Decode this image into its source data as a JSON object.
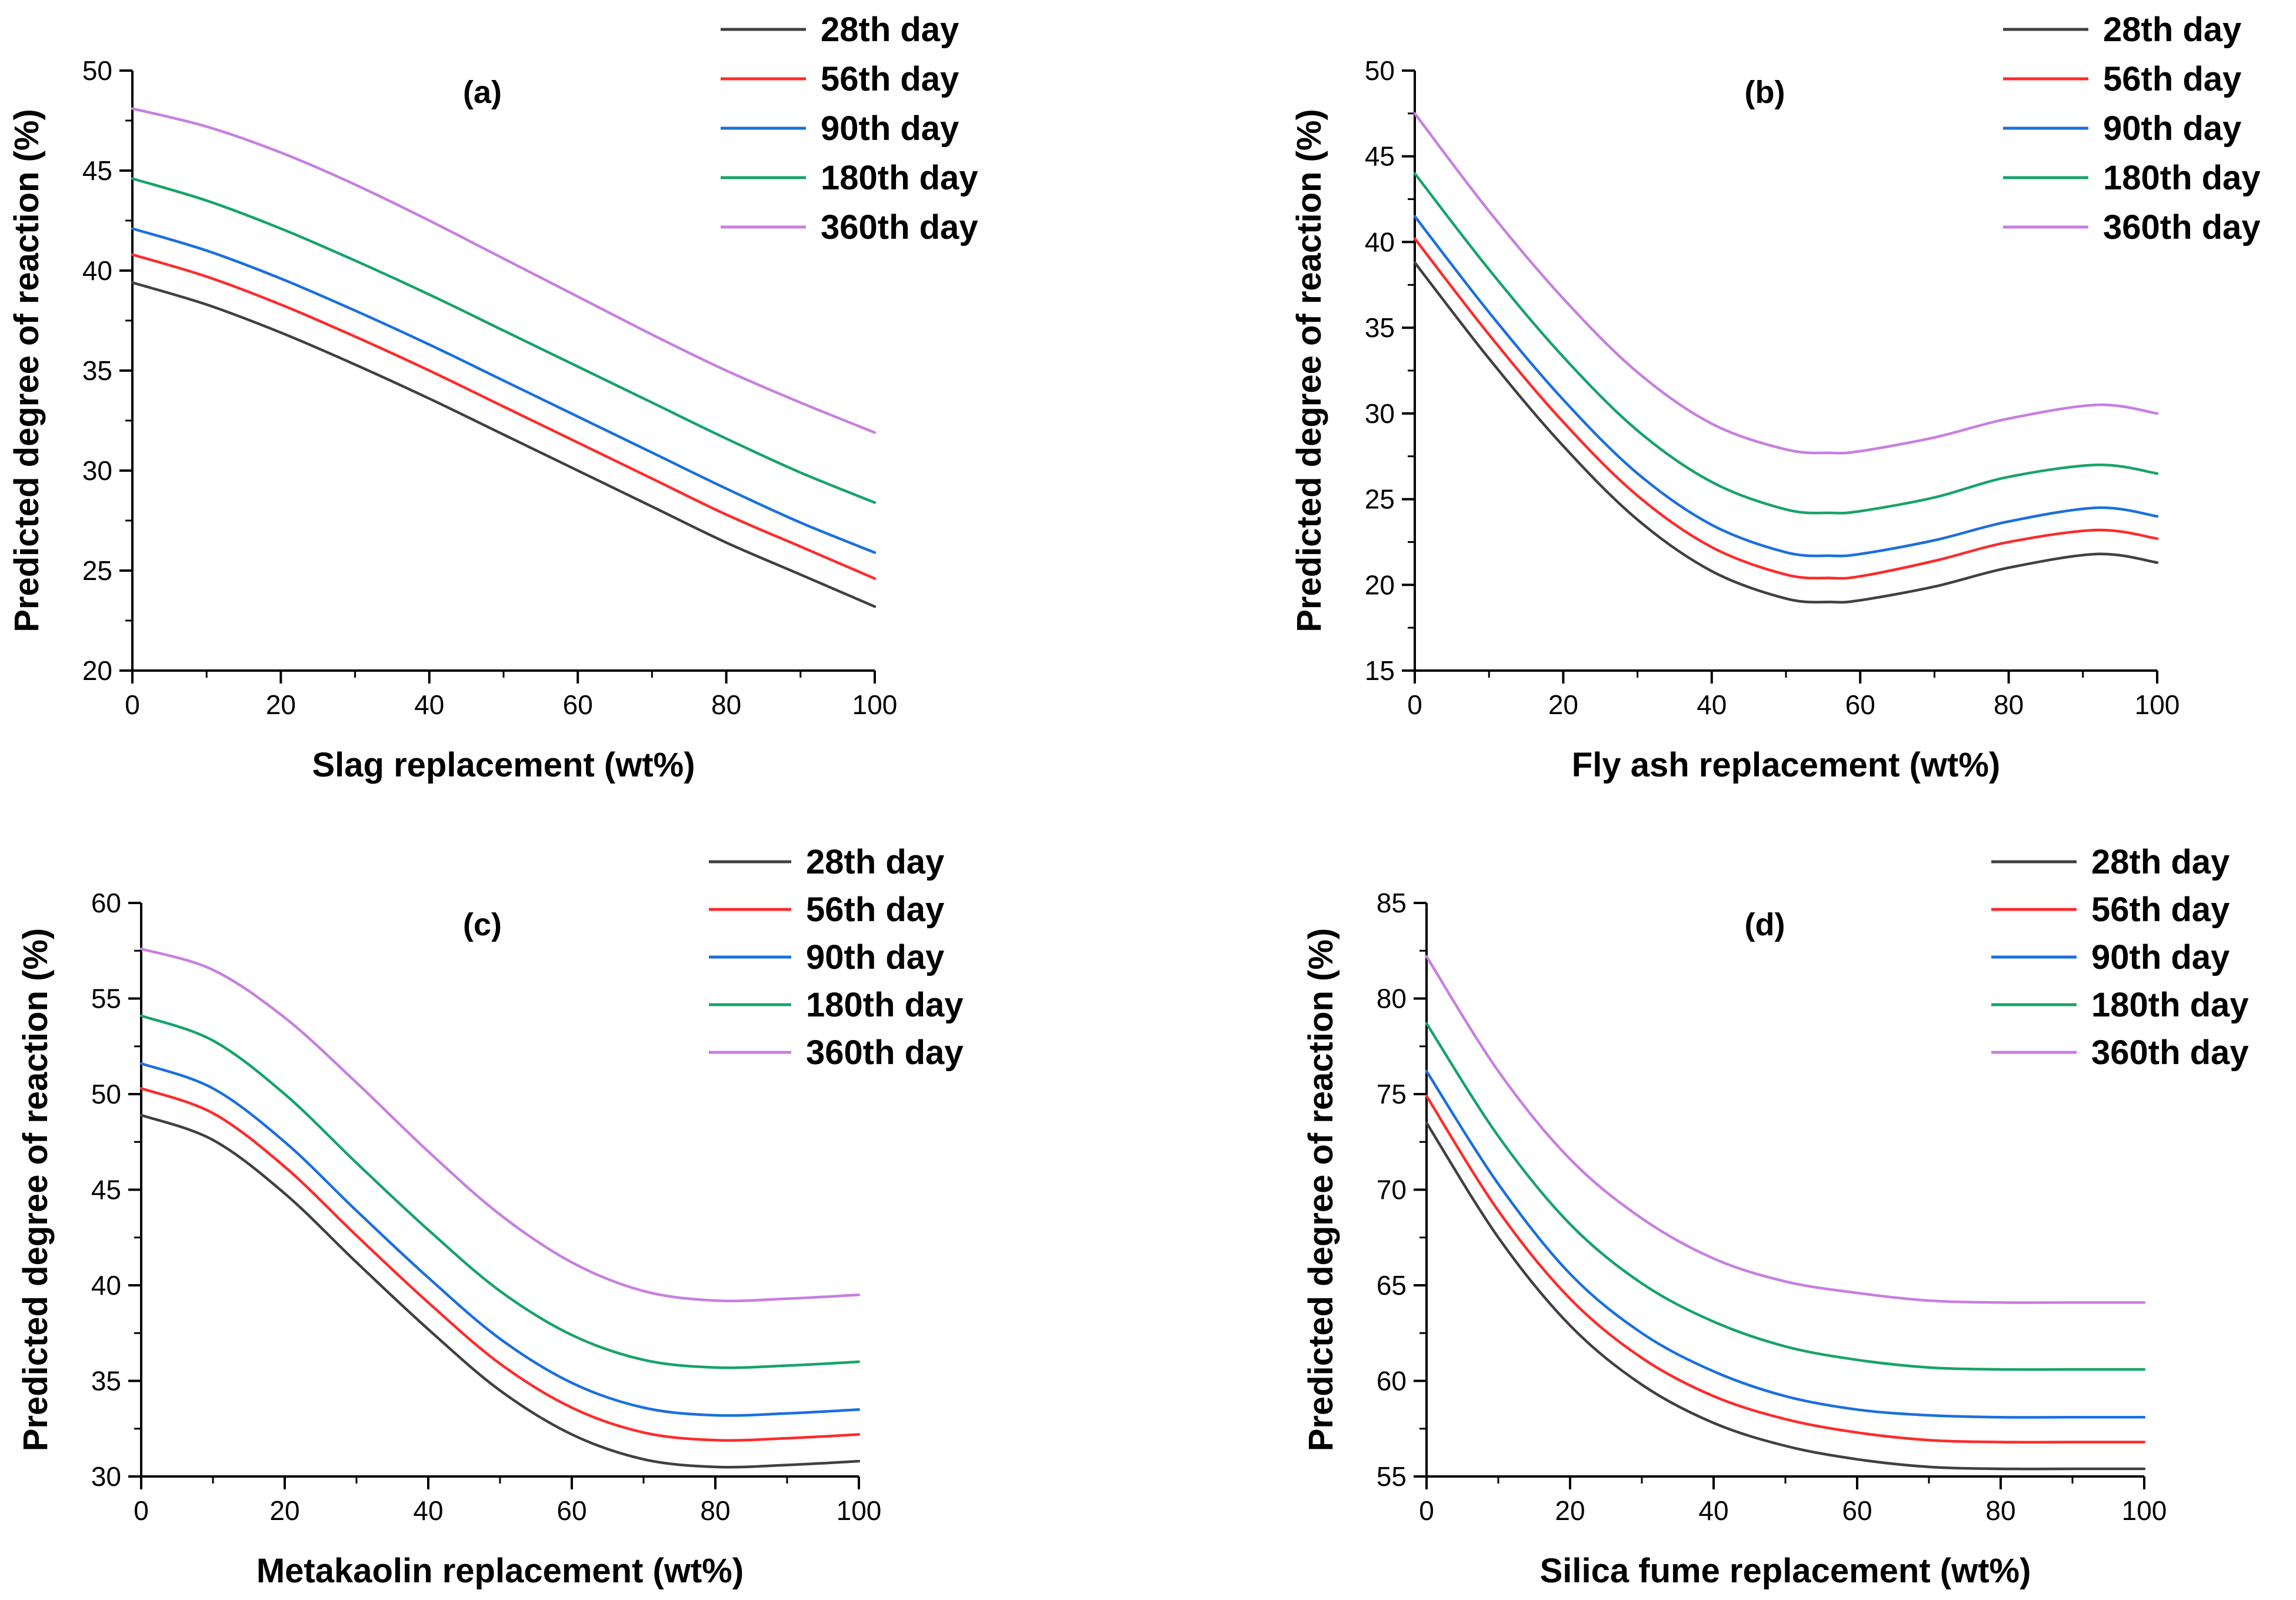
{
  "chart_data": [
    {
      "type": "line",
      "panel_label": "(a)",
      "xlabel": "Slag replacement (wt%)",
      "ylabel": "Predicted degree of reaction (%)",
      "xlim": [
        0,
        100
      ],
      "ylim": [
        20,
        50
      ],
      "xticks": [
        0,
        20,
        40,
        60,
        80,
        100
      ],
      "yticks": [
        20,
        25,
        30,
        35,
        40,
        45,
        50
      ],
      "x": [
        0,
        10,
        20,
        30,
        40,
        50,
        60,
        70,
        80,
        90,
        100
      ],
      "legend_position": "top-right",
      "series": [
        {
          "name": "28th day",
          "color": "#404040",
          "values": [
            39.4,
            38.3,
            36.9,
            35.3,
            33.6,
            31.8,
            30.0,
            28.2,
            26.4,
            24.8,
            23.2
          ]
        },
        {
          "name": "56th day",
          "color": "#ff2a2a",
          "values": [
            40.8,
            39.7,
            38.3,
            36.7,
            35.0,
            33.2,
            31.4,
            29.6,
            27.8,
            26.2,
            24.6
          ]
        },
        {
          "name": "90th day",
          "color": "#1a6fe0",
          "values": [
            42.1,
            41.0,
            39.6,
            38.0,
            36.3,
            34.5,
            32.7,
            30.9,
            29.1,
            27.4,
            25.9
          ]
        },
        {
          "name": "180th day",
          "color": "#16a36a",
          "values": [
            44.6,
            43.5,
            42.1,
            40.5,
            38.8,
            37.0,
            35.2,
            33.4,
            31.6,
            29.9,
            28.4
          ]
        },
        {
          "name": "360th day",
          "color": "#c77fe0",
          "values": [
            48.1,
            47.2,
            45.9,
            44.3,
            42.5,
            40.6,
            38.7,
            36.8,
            35.0,
            33.4,
            31.9
          ]
        }
      ]
    },
    {
      "type": "line",
      "panel_label": "(b)",
      "xlabel": "Fly ash replacement (wt%)",
      "ylabel": "Predicted degree of reaction (%)",
      "xlim": [
        0,
        100
      ],
      "ylim": [
        15,
        50
      ],
      "xticks": [
        0,
        20,
        40,
        60,
        80,
        100
      ],
      "yticks": [
        15,
        20,
        25,
        30,
        35,
        40,
        45,
        50
      ],
      "x": [
        0,
        10,
        20,
        30,
        40,
        50,
        56,
        60,
        70,
        80,
        92,
        100
      ],
      "legend_position": "top-right",
      "series": [
        {
          "name": "28th day",
          "color": "#404040",
          "values": [
            38.8,
            33.2,
            28.1,
            23.8,
            20.8,
            19.2,
            19.0,
            19.1,
            19.9,
            21.0,
            21.8,
            21.3
          ]
        },
        {
          "name": "56th day",
          "color": "#ff2a2a",
          "values": [
            40.2,
            34.6,
            29.5,
            25.2,
            22.2,
            20.6,
            20.4,
            20.5,
            21.4,
            22.5,
            23.2,
            22.7
          ]
        },
        {
          "name": "90th day",
          "color": "#1a6fe0",
          "values": [
            41.5,
            35.9,
            30.8,
            26.5,
            23.5,
            21.9,
            21.7,
            21.8,
            22.6,
            23.7,
            24.5,
            24.0
          ]
        },
        {
          "name": "180th day",
          "color": "#16a36a",
          "values": [
            44.0,
            38.4,
            33.3,
            29.0,
            26.0,
            24.4,
            24.2,
            24.3,
            25.1,
            26.3,
            27.0,
            26.5
          ]
        },
        {
          "name": "360th day",
          "color": "#c77fe0",
          "values": [
            47.5,
            41.8,
            36.7,
            32.4,
            29.4,
            27.9,
            27.7,
            27.8,
            28.6,
            29.7,
            30.5,
            30.0
          ]
        }
      ]
    },
    {
      "type": "line",
      "panel_label": "(c)",
      "xlabel": "Metakaolin replacement (wt%)",
      "ylabel": "Predicted degree of reaction (%)",
      "xlim": [
        0,
        100
      ],
      "ylim": [
        30,
        60
      ],
      "xticks": [
        0,
        20,
        40,
        60,
        80,
        100
      ],
      "yticks": [
        30,
        35,
        40,
        45,
        50,
        55,
        60
      ],
      "x": [
        0,
        10,
        20,
        30,
        40,
        50,
        60,
        70,
        80,
        90,
        100
      ],
      "legend_position": "top-right",
      "series": [
        {
          "name": "28th day",
          "color": "#404040",
          "values": [
            48.9,
            47.6,
            44.8,
            41.2,
            37.7,
            34.5,
            32.2,
            30.9,
            30.5,
            30.6,
            30.8
          ]
        },
        {
          "name": "56th day",
          "color": "#ff2a2a",
          "values": [
            50.3,
            49.0,
            46.2,
            42.6,
            39.1,
            35.9,
            33.6,
            32.3,
            31.9,
            32.0,
            32.2
          ]
        },
        {
          "name": "90th day",
          "color": "#1a6fe0",
          "values": [
            51.6,
            50.3,
            47.5,
            43.9,
            40.4,
            37.2,
            34.9,
            33.6,
            33.2,
            33.3,
            33.5
          ]
        },
        {
          "name": "180th day",
          "color": "#16a36a",
          "values": [
            54.1,
            52.8,
            50.0,
            46.4,
            42.9,
            39.7,
            37.4,
            36.1,
            35.7,
            35.8,
            36.0
          ]
        },
        {
          "name": "360th day",
          "color": "#c77fe0",
          "values": [
            57.6,
            56.5,
            54.0,
            50.6,
            47.0,
            43.7,
            41.2,
            39.7,
            39.2,
            39.3,
            39.5
          ]
        }
      ]
    },
    {
      "type": "line",
      "panel_label": "(d)",
      "xlabel": "Silica fume replacement (wt%)",
      "ylabel": "Predicted degree of reaction (%)",
      "xlim": [
        0,
        100
      ],
      "ylim": [
        55,
        85
      ],
      "xticks": [
        0,
        20,
        40,
        60,
        80,
        100
      ],
      "yticks": [
        55,
        60,
        65,
        70,
        75,
        80,
        85
      ],
      "x": [
        0,
        10,
        20,
        30,
        40,
        50,
        60,
        70,
        80,
        90,
        100
      ],
      "legend_position": "top-right",
      "series": [
        {
          "name": "28th day",
          "color": "#404040",
          "values": [
            73.5,
            67.5,
            62.9,
            59.8,
            57.8,
            56.6,
            55.9,
            55.5,
            55.4,
            55.4,
            55.4
          ]
        },
        {
          "name": "56th day",
          "color": "#ff2a2a",
          "values": [
            74.9,
            68.9,
            64.3,
            61.2,
            59.2,
            58.0,
            57.3,
            56.9,
            56.8,
            56.8,
            56.8
          ]
        },
        {
          "name": "90th day",
          "color": "#1a6fe0",
          "values": [
            76.2,
            70.3,
            65.6,
            62.5,
            60.5,
            59.2,
            58.5,
            58.2,
            58.1,
            58.1,
            58.1
          ]
        },
        {
          "name": "180th day",
          "color": "#16a36a",
          "values": [
            78.7,
            72.8,
            68.2,
            65.1,
            63.1,
            61.8,
            61.1,
            60.7,
            60.6,
            60.6,
            60.6
          ]
        },
        {
          "name": "360th day",
          "color": "#c77fe0",
          "values": [
            82.2,
            76.2,
            71.6,
            68.5,
            66.4,
            65.2,
            64.6,
            64.2,
            64.1,
            64.1,
            64.1
          ]
        }
      ]
    }
  ]
}
